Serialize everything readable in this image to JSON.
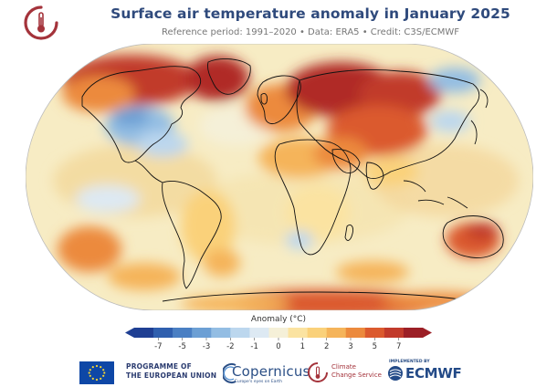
{
  "header": {
    "title": "Surface air temperature anomaly in January 2025",
    "subtitle": "Reference period: 1991–2020 • Data: ERA5 • Credit: C3S/ECMWF"
  },
  "map": {
    "projection": "robinson",
    "land_outline_color": "#111111",
    "ocean_base_color": "#f7ecc4",
    "regions": [
      {
        "name": "north-canada-greenland",
        "anomaly": 6
      },
      {
        "name": "alaska",
        "anomaly": 4
      },
      {
        "name": "eastern-north-america",
        "anomaly": -3
      },
      {
        "name": "northern-europe",
        "anomaly": 4
      },
      {
        "name": "siberia",
        "anomaly": 6
      },
      {
        "name": "central-asia",
        "anomaly": 4
      },
      {
        "name": "east-siberia",
        "anomaly": -2
      },
      {
        "name": "north-africa-middle-east",
        "anomaly": 2
      },
      {
        "name": "australia",
        "anomaly": 4
      },
      {
        "name": "southwest-pacific-ocean",
        "anomaly": 3
      },
      {
        "name": "antarctica-coast",
        "anomaly": 3
      }
    ]
  },
  "legend": {
    "title": "Anomaly (°C)",
    "ticks": [
      "-7",
      "-5",
      "-3",
      "-2",
      "-1",
      "0",
      "1",
      "2",
      "3",
      "5",
      "7"
    ],
    "colors": [
      "#1f3f93",
      "#2f5fae",
      "#4a7fc3",
      "#6c9fd4",
      "#93bde3",
      "#bcd7ee",
      "#dde9f3",
      "#f5f0d8",
      "#fbe3a1",
      "#fad17a",
      "#f5b45a",
      "#ec8a3d",
      "#db5a2e",
      "#c13a2b",
      "#9c1f26"
    ]
  },
  "footer": {
    "eu_line1": "PROGRAMME OF",
    "eu_line2": "THE EUROPEAN UNION",
    "copernicus_word": "Copernicus",
    "copernicus_tagline": "Europe's eyes on Earth",
    "c3s_line1": "Climate",
    "c3s_line2": "Change Service",
    "implemented": "IMPLEMENTED BY",
    "ecmwf": "ECMWF"
  }
}
